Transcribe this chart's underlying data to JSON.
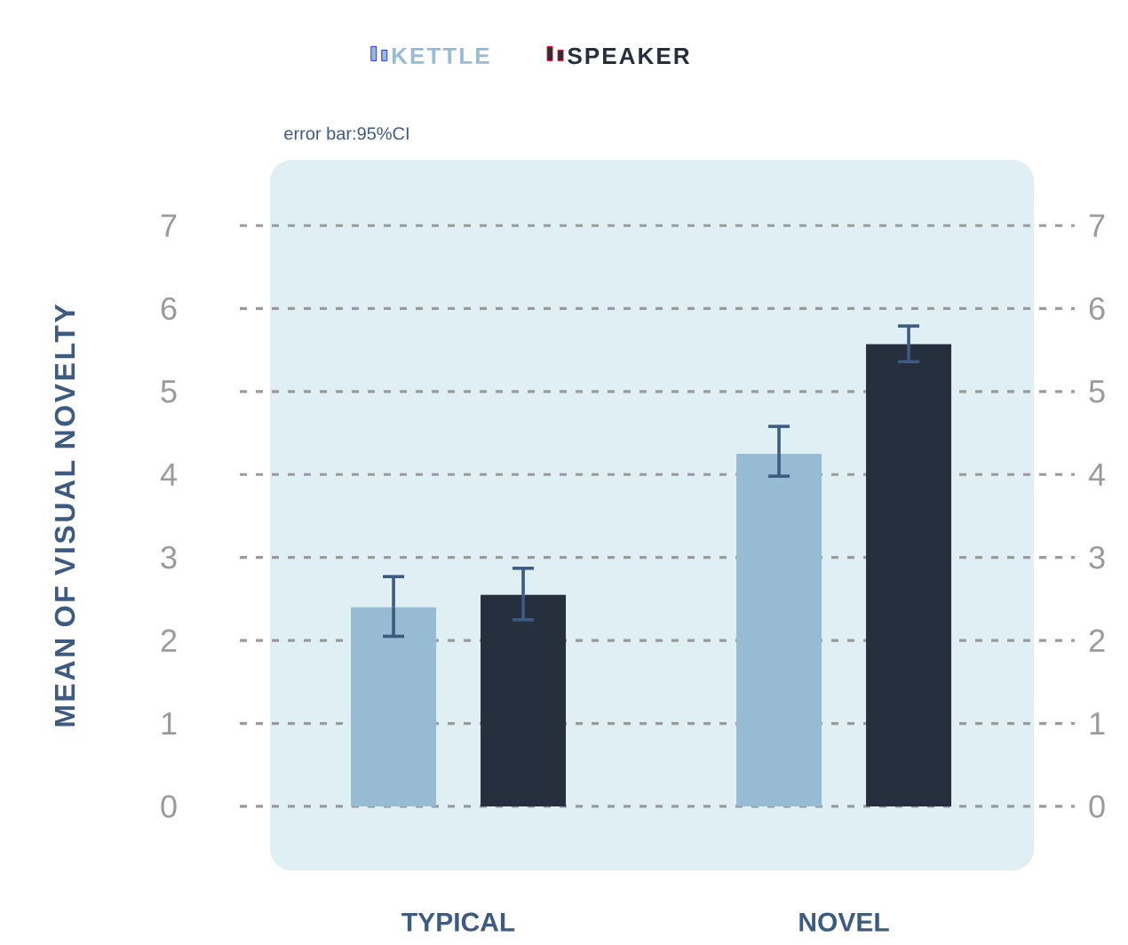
{
  "chart_data": {
    "type": "bar",
    "categories": [
      "TYPICAL",
      "NOVEL"
    ],
    "ylabel": "MEAN OF VISUAL NOVELTY",
    "annotations": [
      "error bar:95%CI"
    ],
    "series": [
      {
        "name": "KETTLE",
        "color": "#97bbd3",
        "values": [
          2.4,
          4.25
        ],
        "errors": [
          [
            2.05,
            2.77
          ],
          [
            3.98,
            4.58
          ]
        ]
      },
      {
        "name": "SPEAKER",
        "color": "#262f3e",
        "values": [
          2.55,
          5.57
        ],
        "errors": [
          [
            2.25,
            2.87
          ],
          [
            5.36,
            5.79
          ]
        ]
      }
    ],
    "ylim": [
      0,
      7
    ],
    "yticks": [
      0,
      1,
      2,
      3,
      4,
      5,
      6,
      7
    ],
    "y2lim": [
      0,
      7
    ],
    "y2ticks": [
      0,
      1,
      2,
      3,
      4,
      5,
      6,
      7
    ],
    "grid": "y",
    "legend": "top"
  }
}
